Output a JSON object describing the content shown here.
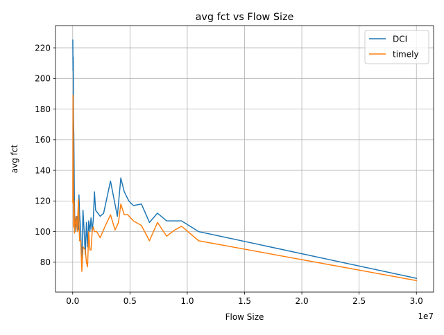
{
  "chart_data": {
    "type": "line",
    "title": "avg fct vs Flow Size",
    "xlabel": "Flow Size",
    "ylabel": "avg fct",
    "x_offset_label": "1e7",
    "xlim": [
      -1500000,
      31500000
    ],
    "ylim": [
      60.5,
      234.5
    ],
    "x_ticks": [
      0,
      5000000,
      10000000,
      15000000,
      20000000,
      25000000,
      30000000
    ],
    "x_tick_labels": [
      "0.0",
      "0.5",
      "1.0",
      "1.5",
      "2.0",
      "2.5",
      "3.0"
    ],
    "y_ticks": [
      80,
      100,
      120,
      140,
      160,
      180,
      200,
      220
    ],
    "y_tick_labels": [
      "80",
      "100",
      "120",
      "140",
      "160",
      "180",
      "200",
      "220"
    ],
    "grid": true,
    "legend_position": "top-right",
    "series": [
      {
        "name": "DCI",
        "color": "#1f77b4",
        "points": [
          [
            10000,
            225
          ],
          [
            30000,
            205
          ],
          [
            50000,
            214
          ],
          [
            70000,
            175
          ],
          [
            100000,
            163
          ],
          [
            150000,
            120
          ],
          [
            200000,
            100
          ],
          [
            300000,
            105
          ],
          [
            400000,
            110
          ],
          [
            500000,
            101
          ],
          [
            550000,
            124
          ],
          [
            600000,
            112
          ],
          [
            700000,
            100
          ],
          [
            800000,
            78
          ],
          [
            900000,
            114
          ],
          [
            1000000,
            100
          ],
          [
            1100000,
            85
          ],
          [
            1200000,
            106
          ],
          [
            1300000,
            90
          ],
          [
            1400000,
            107
          ],
          [
            1500000,
            100
          ],
          [
            1600000,
            109
          ],
          [
            1700000,
            100
          ],
          [
            1800000,
            108
          ],
          [
            1900000,
            126
          ],
          [
            2000000,
            114
          ],
          [
            2400000,
            110
          ],
          [
            2700000,
            112
          ],
          [
            3300000,
            133
          ],
          [
            3900000,
            110
          ],
          [
            4200000,
            135
          ],
          [
            4500000,
            126
          ],
          [
            4900000,
            120
          ],
          [
            5300000,
            117
          ],
          [
            6000000,
            118
          ],
          [
            6700000,
            106
          ],
          [
            7400000,
            112
          ],
          [
            8200000,
            107
          ],
          [
            8900000,
            107
          ],
          [
            9500000,
            107
          ],
          [
            11000000,
            100
          ],
          [
            30000000,
            69.5
          ]
        ]
      },
      {
        "name": "timely",
        "color": "#ff7f0e",
        "points": [
          [
            10000,
            119
          ],
          [
            30000,
            189
          ],
          [
            50000,
            150
          ],
          [
            80000,
            103
          ],
          [
            120000,
            120
          ],
          [
            160000,
            99
          ],
          [
            200000,
            103
          ],
          [
            300000,
            110
          ],
          [
            400000,
            100
          ],
          [
            500000,
            121
          ],
          [
            600000,
            94
          ],
          [
            700000,
            94
          ],
          [
            800000,
            74
          ],
          [
            900000,
            90
          ],
          [
            1000000,
            89
          ],
          [
            1100000,
            88
          ],
          [
            1200000,
            80
          ],
          [
            1300000,
            77
          ],
          [
            1400000,
            100
          ],
          [
            1500000,
            88
          ],
          [
            1600000,
            88
          ],
          [
            1700000,
            100
          ],
          [
            1800000,
            103
          ],
          [
            1900000,
            100
          ],
          [
            2100000,
            100
          ],
          [
            2400000,
            96
          ],
          [
            2800000,
            103
          ],
          [
            3300000,
            111
          ],
          [
            3700000,
            101
          ],
          [
            4000000,
            106
          ],
          [
            4200000,
            118
          ],
          [
            4500000,
            111
          ],
          [
            4800000,
            111
          ],
          [
            5300000,
            107
          ],
          [
            6000000,
            104
          ],
          [
            6700000,
            94
          ],
          [
            7400000,
            106
          ],
          [
            8200000,
            97
          ],
          [
            8900000,
            101
          ],
          [
            9500000,
            103.5
          ],
          [
            11000000,
            94
          ],
          [
            30000000,
            68
          ]
        ]
      }
    ]
  }
}
